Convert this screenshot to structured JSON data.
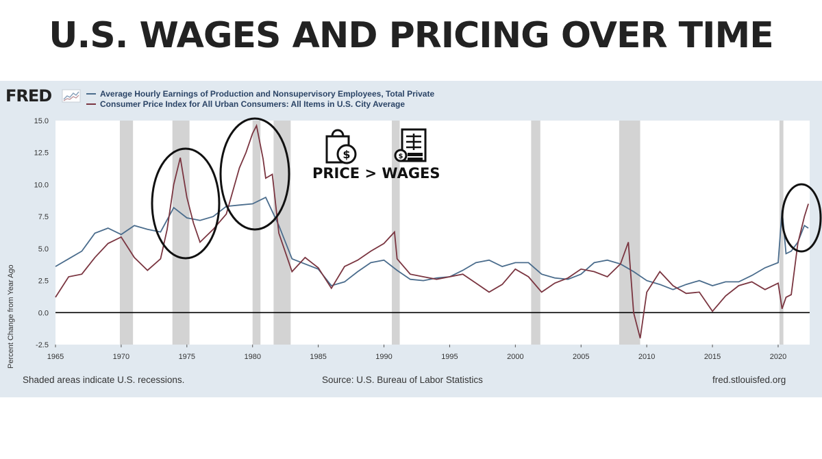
{
  "headline": "U.S. WAGES AND PRICING OVER TIME",
  "logo": "FRED",
  "footer": {
    "note": "Shaded areas indicate U.S. recessions.",
    "source": "Source: U.S. Bureau of Labor Statistics",
    "site": "fred.stlouisfed.org"
  },
  "annotation": {
    "label": "PRICE > WAGES",
    "icons": [
      "shopping-bag-dollar-icon",
      "payroll-document-icon"
    ]
  },
  "colors": {
    "wages": "#4a6c8c",
    "cpi": "#7a3540",
    "recession": "#d3d3d3",
    "panel": "#e1e9f0",
    "headline": "#222222"
  },
  "chart_data": {
    "type": "line",
    "title": "",
    "xlabel": "",
    "ylabel": "Percent Change from Year Ago",
    "xlim": [
      1965,
      2022.4
    ],
    "ylim": [
      -2.5,
      15.0
    ],
    "yticks": [
      "-2.5",
      "0.0",
      "2.5",
      "5.0",
      "7.5",
      "10.0",
      "12.5",
      "15.0"
    ],
    "xticks": [
      "1965",
      "1970",
      "1975",
      "1980",
      "1985",
      "1990",
      "1995",
      "2000",
      "2005",
      "2010",
      "2015",
      "2020"
    ],
    "grid": false,
    "legend_position": "top-left",
    "recessions": [
      [
        1969.9,
        1970.9
      ],
      [
        1973.9,
        1975.2
      ],
      [
        1980.0,
        1980.6
      ],
      [
        1981.6,
        1982.9
      ],
      [
        1990.6,
        1991.2
      ],
      [
        2001.2,
        2001.9
      ],
      [
        2007.9,
        2009.5
      ],
      [
        2020.1,
        2020.4
      ]
    ],
    "series": [
      {
        "name": "Average Hourly Earnings of Production and Nonsupervisory Employees, Total Private",
        "x": [
          1965,
          1966,
          1967,
          1968,
          1969,
          1970,
          1971,
          1972,
          1973,
          1974,
          1975,
          1976,
          1977,
          1978,
          1979,
          1980,
          1981,
          1982,
          1983,
          1984,
          1985,
          1986,
          1987,
          1988,
          1989,
          1990,
          1991,
          1992,
          1993,
          1994,
          1995,
          1996,
          1997,
          1998,
          1999,
          2000,
          2001,
          2002,
          2003,
          2004,
          2005,
          2006,
          2007,
          2008,
          2009,
          2010,
          2011,
          2012,
          2013,
          2014,
          2015,
          2016,
          2017,
          2018,
          2019,
          2020,
          2020.3,
          2020.6,
          2021,
          2021.5,
          2022,
          2022.3
        ],
        "values": [
          3.6,
          4.2,
          4.8,
          6.2,
          6.6,
          6.1,
          6.8,
          6.5,
          6.3,
          8.2,
          7.4,
          7.2,
          7.5,
          8.3,
          8.4,
          8.5,
          9.0,
          6.8,
          4.2,
          3.8,
          3.4,
          2.1,
          2.4,
          3.2,
          3.9,
          4.1,
          3.3,
          2.6,
          2.5,
          2.7,
          2.8,
          3.3,
          3.9,
          4.1,
          3.6,
          3.9,
          3.9,
          3.0,
          2.7,
          2.6,
          3.0,
          3.9,
          4.1,
          3.8,
          3.2,
          2.5,
          2.2,
          1.8,
          2.2,
          2.5,
          2.1,
          2.4,
          2.4,
          2.9,
          3.5,
          3.9,
          8.0,
          4.6,
          4.8,
          5.5,
          6.8,
          6.6
        ]
      },
      {
        "name": "Consumer Price Index for All Urban Consumers: All Items in U.S. City Average",
        "x": [
          1965,
          1966,
          1967,
          1968,
          1969,
          1970,
          1971,
          1972,
          1973,
          1973.5,
          1974,
          1974.5,
          1975,
          1975.5,
          1976,
          1977,
          1978,
          1979,
          1979.5,
          1980,
          1980.3,
          1980.8,
          1981,
          1981.5,
          1982,
          1983,
          1984,
          1985,
          1986,
          1987,
          1988,
          1989,
          1990,
          1990.8,
          1991,
          1992,
          1993,
          1994,
          1995,
          1996,
          1997,
          1998,
          1999,
          2000,
          2001,
          2002,
          2003,
          2004,
          2005,
          2006,
          2007,
          2008,
          2008.6,
          2009,
          2009.5,
          2010,
          2011,
          2012,
          2013,
          2014,
          2015,
          2016,
          2017,
          2018,
          2019,
          2020,
          2020.3,
          2020.6,
          2021,
          2021.5,
          2022,
          2022.3
        ],
        "values": [
          1.2,
          2.8,
          3.0,
          4.3,
          5.4,
          5.9,
          4.3,
          3.3,
          4.2,
          6.5,
          10.0,
          12.1,
          9.0,
          7.0,
          5.5,
          6.5,
          7.7,
          11.3,
          12.5,
          14.0,
          14.6,
          12.0,
          10.5,
          10.8,
          6.2,
          3.2,
          4.3,
          3.5,
          1.9,
          3.6,
          4.1,
          4.8,
          5.4,
          6.3,
          4.2,
          3.0,
          2.8,
          2.6,
          2.8,
          3.0,
          2.3,
          1.6,
          2.2,
          3.4,
          2.8,
          1.6,
          2.3,
          2.7,
          3.4,
          3.2,
          2.8,
          3.8,
          5.5,
          0.0,
          -2.0,
          1.6,
          3.2,
          2.1,
          1.5,
          1.6,
          0.1,
          1.3,
          2.1,
          2.4,
          1.8,
          2.3,
          0.3,
          1.2,
          1.4,
          5.4,
          7.5,
          8.5
        ]
      }
    ]
  }
}
